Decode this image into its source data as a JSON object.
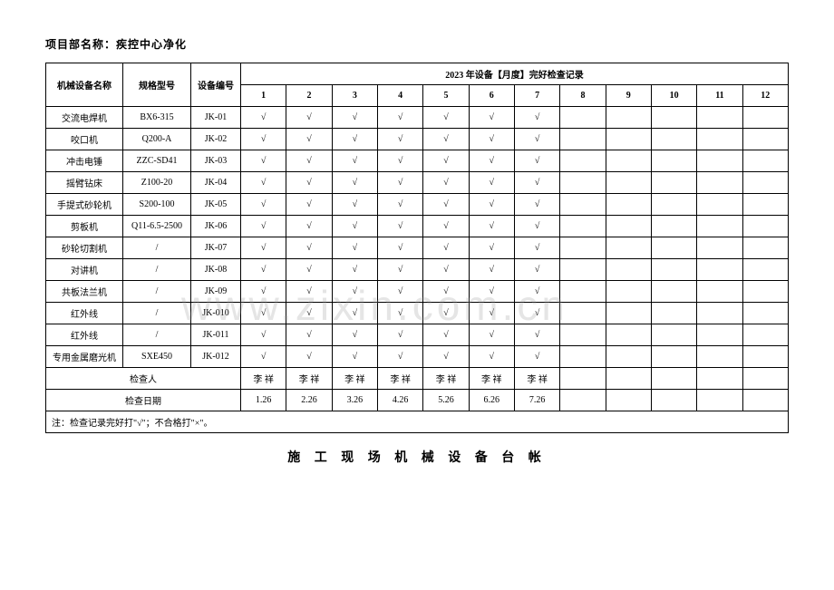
{
  "header": {
    "project_label": "项目部名称：",
    "project_name": "疾控中心净化"
  },
  "table": {
    "columns": {
      "name": "机械设备名称",
      "spec": "规格型号",
      "code": "设备编号",
      "record_title": "2023 年设备【月度】完好检查记录",
      "months": [
        "1",
        "2",
        "3",
        "4",
        "5",
        "6",
        "7",
        "8",
        "9",
        "10",
        "11",
        "12"
      ]
    },
    "rows": [
      {
        "name": "交流电焊机",
        "spec": "BX6-315",
        "code": "JK-01",
        "checks": [
          "√",
          "√",
          "√",
          "√",
          "√",
          "√",
          "√",
          "",
          "",
          "",
          "",
          ""
        ]
      },
      {
        "name": "咬口机",
        "spec": "Q200-A",
        "code": "JK-02",
        "checks": [
          "√",
          "√",
          "√",
          "√",
          "√",
          "√",
          "√",
          "",
          "",
          "",
          "",
          ""
        ]
      },
      {
        "name": "冲击电锤",
        "spec": "ZZC-SD41",
        "code": "JK-03",
        "checks": [
          "√",
          "√",
          "√",
          "√",
          "√",
          "√",
          "√",
          "",
          "",
          "",
          "",
          ""
        ]
      },
      {
        "name": "摇臂钻床",
        "spec": "Z100-20",
        "code": "JK-04",
        "checks": [
          "√",
          "√",
          "√",
          "√",
          "√",
          "√",
          "√",
          "",
          "",
          "",
          "",
          ""
        ]
      },
      {
        "name": "手提式砂轮机",
        "spec": "S200-100",
        "code": "JK-05",
        "checks": [
          "√",
          "√",
          "√",
          "√",
          "√",
          "√",
          "√",
          "",
          "",
          "",
          "",
          ""
        ]
      },
      {
        "name": "剪板机",
        "spec": "Q11-6.5-2500",
        "code": "JK-06",
        "checks": [
          "√",
          "√",
          "√",
          "√",
          "√",
          "√",
          "√",
          "",
          "",
          "",
          "",
          ""
        ]
      },
      {
        "name": "砂轮切割机",
        "spec": "/",
        "code": "JK-07",
        "checks": [
          "√",
          "√",
          "√",
          "√",
          "√",
          "√",
          "√",
          "",
          "",
          "",
          "",
          ""
        ]
      },
      {
        "name": "对讲机",
        "spec": "/",
        "code": "JK-08",
        "checks": [
          "√",
          "√",
          "√",
          "√",
          "√",
          "√",
          "√",
          "",
          "",
          "",
          "",
          ""
        ]
      },
      {
        "name": "共板法兰机",
        "spec": "/",
        "code": "JK-09",
        "checks": [
          "√",
          "√",
          "√",
          "√",
          "√",
          "√",
          "√",
          "",
          "",
          "",
          "",
          ""
        ]
      },
      {
        "name": "红外线",
        "spec": "/",
        "code": "JK-010",
        "checks": [
          "√",
          "√",
          "√",
          "√",
          "√",
          "√",
          "√",
          "",
          "",
          "",
          "",
          ""
        ]
      },
      {
        "name": "红外线",
        "spec": "/",
        "code": "JK-011",
        "checks": [
          "√",
          "√",
          "√",
          "√",
          "√",
          "√",
          "√",
          "",
          "",
          "",
          "",
          ""
        ]
      },
      {
        "name": "专用金属磨光机",
        "spec": "SXE450",
        "code": "JK-012",
        "checks": [
          "√",
          "√",
          "√",
          "√",
          "√",
          "√",
          "√",
          "",
          "",
          "",
          "",
          ""
        ]
      }
    ],
    "inspector_label": "检查人",
    "inspector_values": [
      "李 祥",
      "李 祥",
      "李 祥",
      "李 祥",
      "李 祥",
      "李 祥",
      "李 祥",
      "",
      "",
      "",
      "",
      ""
    ],
    "date_label": "检查日期",
    "date_values": [
      "1.26",
      "2.26",
      "3.26",
      "4.26",
      "5.26",
      "6.26",
      "7.26",
      "",
      "",
      "",
      "",
      ""
    ],
    "note": "注：检查记录完好打\"√\"；不合格打\"×\"。"
  },
  "footer_title": "施 工 现 场 机 械 设 备 台 帐",
  "watermark": "www.zixin.com.cn",
  "style": {
    "border_color": "#000000",
    "background": "#ffffff",
    "text_color": "#000000",
    "watermark_color": "rgba(150,150,150,0.25)"
  }
}
